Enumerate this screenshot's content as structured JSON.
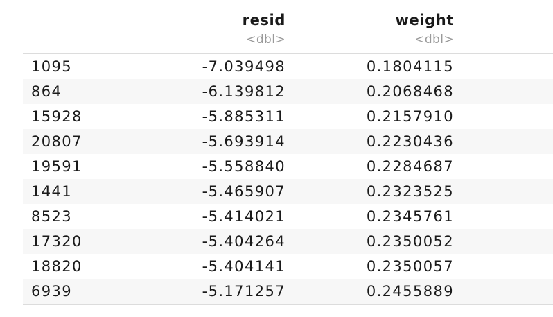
{
  "columns": [
    {
      "name": "resid",
      "type": "<dbl>"
    },
    {
      "name": "weight",
      "type": "<dbl>"
    }
  ],
  "rows": [
    {
      "id": "1095",
      "resid": "-7.039498",
      "weight": "0.1804115"
    },
    {
      "id": "864",
      "resid": "-6.139812",
      "weight": "0.2068468"
    },
    {
      "id": "15928",
      "resid": "-5.885311",
      "weight": "0.2157910"
    },
    {
      "id": "20807",
      "resid": "-5.693914",
      "weight": "0.2230436"
    },
    {
      "id": "19591",
      "resid": "-5.558840",
      "weight": "0.2284687"
    },
    {
      "id": "1441",
      "resid": "-5.465907",
      "weight": "0.2323525"
    },
    {
      "id": "8523",
      "resid": "-5.414021",
      "weight": "0.2345761"
    },
    {
      "id": "17320",
      "resid": "-5.404264",
      "weight": "0.2350052"
    },
    {
      "id": "18820",
      "resid": "-5.404141",
      "weight": "0.2350057"
    },
    {
      "id": "6939",
      "resid": "-5.171257",
      "weight": "0.2455889"
    }
  ]
}
